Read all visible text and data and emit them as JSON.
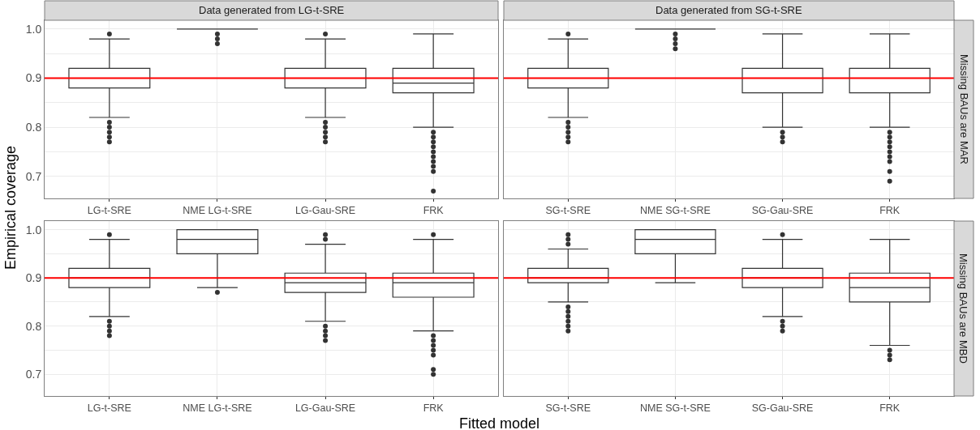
{
  "chart_data": [
    {
      "type": "box",
      "title": "Data generated from LG-t-SRE",
      "ylabel": "Empirical coverage",
      "categories": [
        "LG-t-SRE",
        "NME LG-t-SRE",
        "LG-Gau-SRE",
        "FRK"
      ],
      "ylim": [
        0.655,
        1.018
      ],
      "yticks": [
        {
          "value": 0.7,
          "label": "0.7"
        },
        {
          "value": 0.75,
          "label": null
        },
        {
          "value": 0.8,
          "label": "0.8"
        },
        {
          "value": 0.85,
          "label": null
        },
        {
          "value": 0.9,
          "label": "0.9"
        },
        {
          "value": 0.95,
          "label": null
        },
        {
          "value": 1.0,
          "label": "1.0"
        }
      ],
      "grid": true,
      "ref_lines": [
        {
          "axis": "y",
          "value": 0.9,
          "color": "#ff0000"
        }
      ],
      "series": [
        {
          "color": "#333333",
          "boxes": [
            {
              "low": 0.82,
              "q1": 0.88,
              "median": 0.9,
              "q3": 0.92,
              "high": 0.98,
              "outliers": [
                0.99,
                0.81,
                0.8,
                0.79,
                0.78,
                0.77
              ]
            },
            {
              "low": 1.0,
              "q1": 1.0,
              "median": 1.0,
              "q3": 1.0,
              "high": 1.0,
              "outliers": [
                0.99,
                0.98,
                0.97
              ]
            },
            {
              "low": 0.82,
              "q1": 0.88,
              "median": 0.9,
              "q3": 0.92,
              "high": 0.98,
              "outliers": [
                0.99,
                0.81,
                0.8,
                0.79,
                0.78,
                0.77
              ]
            },
            {
              "low": 0.8,
              "q1": 0.87,
              "median": 0.89,
              "q3": 0.92,
              "high": 0.99,
              "outliers": [
                0.79,
                0.78,
                0.77,
                0.76,
                0.75,
                0.74,
                0.73,
                0.72,
                0.71,
                0.67
              ]
            }
          ]
        }
      ]
    },
    {
      "type": "box",
      "title": "Data generated from SG-t-SRE",
      "annotations": [
        "Missing BAUs are MAR"
      ],
      "categories": [
        "SG-t-SRE",
        "NME SG-t-SRE",
        "SG-Gau-SRE",
        "FRK"
      ],
      "ylim": [
        0.655,
        1.018
      ],
      "yticks": [
        {
          "value": 0.7,
          "label": null
        },
        {
          "value": 0.75,
          "label": null
        },
        {
          "value": 0.8,
          "label": null
        },
        {
          "value": 0.85,
          "label": null
        },
        {
          "value": 0.9,
          "label": null
        },
        {
          "value": 0.95,
          "label": null
        },
        {
          "value": 1.0,
          "label": null
        }
      ],
      "tick_labels": "x",
      "grid": true,
      "ref_lines": [
        {
          "axis": "y",
          "value": 0.9,
          "color": "#ff0000"
        }
      ],
      "series": [
        {
          "color": "#333333",
          "boxes": [
            {
              "low": 0.82,
              "q1": 0.88,
              "median": 0.9,
              "q3": 0.92,
              "high": 0.98,
              "outliers": [
                0.99,
                0.81,
                0.8,
                0.79,
                0.78,
                0.77
              ]
            },
            {
              "low": 1.0,
              "q1": 1.0,
              "median": 1.0,
              "q3": 1.0,
              "high": 1.0,
              "outliers": [
                0.99,
                0.98,
                0.97,
                0.96
              ]
            },
            {
              "low": 0.8,
              "q1": 0.87,
              "median": 0.9,
              "q3": 0.92,
              "high": 0.99,
              "outliers": [
                0.79,
                0.78,
                0.77
              ]
            },
            {
              "low": 0.8,
              "q1": 0.87,
              "median": 0.9,
              "q3": 0.92,
              "high": 0.99,
              "outliers": [
                0.79,
                0.78,
                0.77,
                0.76,
                0.75,
                0.74,
                0.73,
                0.71,
                0.69
              ]
            }
          ]
        }
      ]
    },
    {
      "type": "box",
      "xlabel": "Fitted model",
      "categories": [
        "LG-t-SRE",
        "NME LG-t-SRE",
        "LG-Gau-SRE",
        "FRK"
      ],
      "ylim": [
        0.655,
        1.018
      ],
      "yticks": [
        {
          "value": 0.7,
          "label": "0.7"
        },
        {
          "value": 0.75,
          "label": null
        },
        {
          "value": 0.8,
          "label": "0.8"
        },
        {
          "value": 0.85,
          "label": null
        },
        {
          "value": 0.9,
          "label": "0.9"
        },
        {
          "value": 0.95,
          "label": null
        },
        {
          "value": 1.0,
          "label": "1.0"
        }
      ],
      "grid": true,
      "ref_lines": [
        {
          "axis": "y",
          "value": 0.9,
          "color": "#ff0000"
        }
      ],
      "series": [
        {
          "color": "#333333",
          "boxes": [
            {
              "low": 0.82,
              "q1": 0.88,
              "median": 0.9,
              "q3": 0.92,
              "high": 0.98,
              "outliers": [
                0.99,
                0.81,
                0.8,
                0.79,
                0.78
              ]
            },
            {
              "low": 0.88,
              "q1": 0.95,
              "median": 0.98,
              "q3": 1.0,
              "high": 1.0,
              "outliers": [
                0.87
              ]
            },
            {
              "low": 0.81,
              "q1": 0.87,
              "median": 0.89,
              "q3": 0.91,
              "high": 0.97,
              "outliers": [
                0.99,
                0.98,
                0.8,
                0.79,
                0.78,
                0.77
              ]
            },
            {
              "low": 0.79,
              "q1": 0.86,
              "median": 0.89,
              "q3": 0.91,
              "high": 0.98,
              "outliers": [
                0.99,
                0.78,
                0.77,
                0.76,
                0.75,
                0.74,
                0.71,
                0.7
              ]
            }
          ]
        }
      ]
    },
    {
      "type": "box",
      "annotations": [
        "Missing BAUs are MBD"
      ],
      "categories": [
        "SG-t-SRE",
        "NME SG-t-SRE",
        "SG-Gau-SRE",
        "FRK"
      ],
      "ylim": [
        0.655,
        1.018
      ],
      "yticks": [
        {
          "value": 0.7,
          "label": null
        },
        {
          "value": 0.75,
          "label": null
        },
        {
          "value": 0.8,
          "label": null
        },
        {
          "value": 0.85,
          "label": null
        },
        {
          "value": 0.9,
          "label": null
        },
        {
          "value": 0.95,
          "label": null
        },
        {
          "value": 1.0,
          "label": null
        }
      ],
      "tick_labels": "x",
      "grid": true,
      "ref_lines": [
        {
          "axis": "y",
          "value": 0.9,
          "color": "#ff0000"
        }
      ],
      "series": [
        {
          "color": "#333333",
          "boxes": [
            {
              "low": 0.85,
              "q1": 0.89,
              "median": 0.9,
              "q3": 0.92,
              "high": 0.96,
              "outliers": [
                0.99,
                0.98,
                0.97,
                0.84,
                0.83,
                0.82,
                0.81,
                0.8,
                0.79
              ]
            },
            {
              "low": 0.89,
              "q1": 0.95,
              "median": 0.98,
              "q3": 1.0,
              "high": 1.0
            },
            {
              "low": 0.82,
              "q1": 0.88,
              "median": 0.9,
              "q3": 0.92,
              "high": 0.98,
              "outliers": [
                0.99,
                0.81,
                0.8,
                0.79
              ]
            },
            {
              "low": 0.76,
              "q1": 0.85,
              "median": 0.88,
              "q3": 0.91,
              "high": 0.98,
              "outliers": [
                0.75,
                0.74,
                0.73
              ]
            }
          ]
        }
      ]
    }
  ]
}
